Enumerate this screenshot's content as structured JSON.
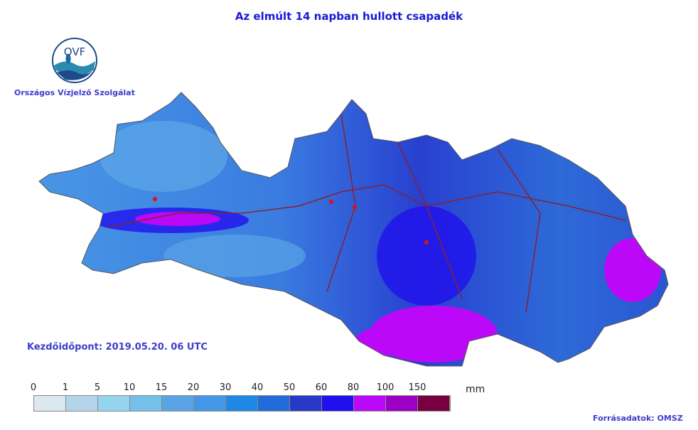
{
  "title": "Az elmúlt 14 napban hullott csapadék",
  "organization": "Országos Vízjelző Szolgálat",
  "logo_text": "OVF",
  "start_time": "Kezdőidőpont: 2019.05.20. 06 UTC",
  "source": "Forrásadatok: OMSZ",
  "legend": {
    "unit": "mm",
    "ticks": [
      "0",
      "1",
      "5",
      "10",
      "15",
      "20",
      "30",
      "40",
      "50",
      "60",
      "80",
      "100",
      "150"
    ],
    "colors": [
      "#dce8ef",
      "#b4d4ec",
      "#96d4ee",
      "#74c0ea",
      "#5aa4e6",
      "#4496e6",
      "#1e88e4",
      "#226cda",
      "#2838c8",
      "#2010ee",
      "#bc08f8",
      "#9c00c4",
      "#780040"
    ]
  }
}
